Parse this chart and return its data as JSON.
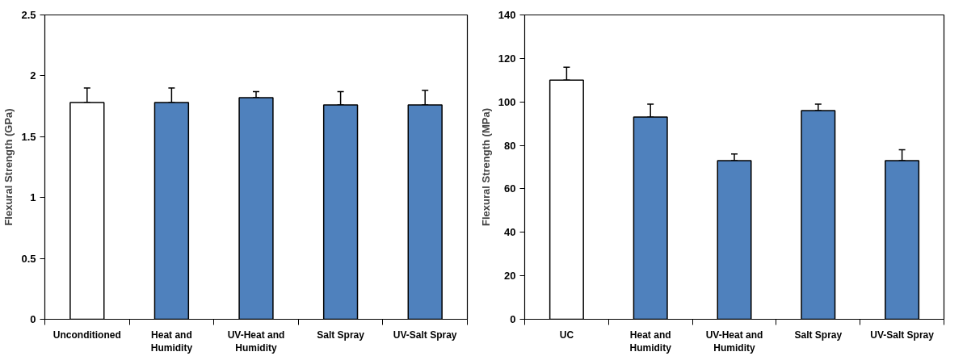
{
  "chart_data": [
    {
      "type": "bar",
      "ylabel": "Flexural Strength (GPa)",
      "categories": [
        "Unconditioned",
        "Heat and Humidity",
        "UV-Heat and Humidity",
        "Salt Spray",
        "UV-Salt Spray"
      ],
      "values": [
        1.78,
        1.78,
        1.82,
        1.76,
        1.76
      ],
      "colors": [
        "#ffffff",
        "#4f81bd",
        "#4f81bd",
        "#4f81bd",
        "#4f81bd"
      ],
      "errors": [
        [
          1.78,
          1.9
        ],
        [
          1.78,
          1.9
        ],
        [
          1.82,
          1.87
        ],
        [
          1.76,
          1.87
        ],
        [
          1.76,
          1.88
        ]
      ],
      "ylim": [
        0,
        2.5
      ],
      "yticks": [
        0,
        0.5,
        1,
        1.5,
        2,
        2.5
      ],
      "grid": false
    },
    {
      "type": "bar",
      "ylabel": "Flexural Strength (MPa)",
      "categories": [
        "UC",
        "Heat and Humidity",
        "UV-Heat and Humidity",
        "Salt Spray",
        "UV-Salt Spray"
      ],
      "values": [
        110,
        93,
        73,
        96,
        73
      ],
      "colors": [
        "#ffffff",
        "#4f81bd",
        "#4f81bd",
        "#4f81bd",
        "#4f81bd"
      ],
      "errors": [
        [
          110,
          116
        ],
        [
          93,
          99
        ],
        [
          73,
          76
        ],
        [
          96,
          99
        ],
        [
          73,
          78
        ]
      ],
      "ylim": [
        0,
        140
      ],
      "yticks": [
        0,
        20,
        40,
        60,
        80,
        100,
        120,
        140
      ],
      "grid": false
    }
  ]
}
